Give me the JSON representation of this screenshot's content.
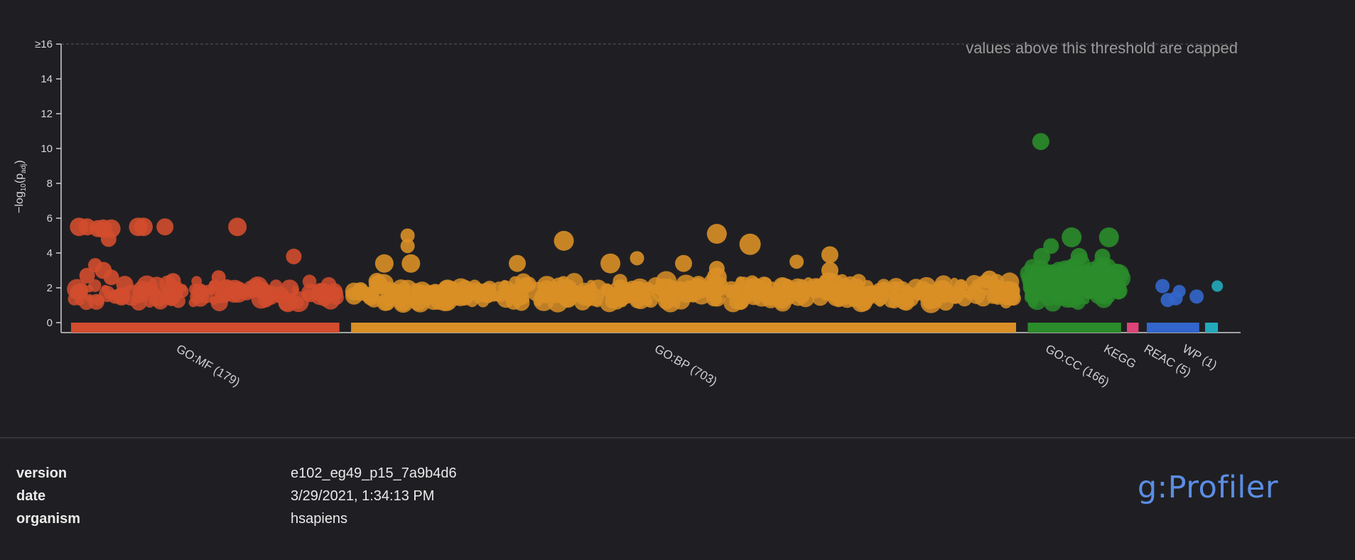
{
  "chart_data": {
    "type": "scatter",
    "ylabel_prefix": "−log",
    "ylabel_sub": "10",
    "ylabel_main": "(p",
    "ylabel_sub2": "adj",
    "ylabel_close": ")",
    "ylim": [
      0,
      16
    ],
    "yticks": [
      "0",
      "2",
      "4",
      "6",
      "8",
      "10",
      "12",
      "14",
      "≥16"
    ],
    "cap_annotation": "values above this threshold are capped",
    "sources": [
      {
        "name": "GO:MF (179)",
        "color": "#d24d2e",
        "range": [
          0,
          0.23
        ],
        "seed": 11,
        "count": 110,
        "base": 1.65,
        "spread": 0.55,
        "highlights": [
          [
            0.03,
            5.5,
            13
          ],
          [
            0.06,
            5.5,
            12
          ],
          [
            0.1,
            5.4,
            12
          ],
          [
            0.12,
            5.4,
            13
          ],
          [
            0.09,
            3.3,
            10
          ],
          [
            0.12,
            3.0,
            12
          ],
          [
            0.15,
            5.4,
            13
          ],
          [
            0.14,
            4.8,
            11
          ],
          [
            0.27,
            5.5,
            13
          ],
          [
            0.25,
            5.5,
            13
          ],
          [
            0.35,
            5.5,
            12
          ],
          [
            0.62,
            5.5,
            13
          ],
          [
            0.83,
            3.8,
            11
          ],
          [
            0.06,
            2.7,
            11
          ],
          [
            0.15,
            2.6,
            11
          ],
          [
            0.2,
            2.2,
            12
          ],
          [
            0.38,
            2.4,
            11
          ],
          [
            0.55,
            2.6,
            10
          ],
          [
            0.58,
            2.0,
            12
          ],
          [
            0.78,
            1.6,
            12
          ],
          [
            0.96,
            1.55,
            10
          ],
          [
            0.99,
            1.7,
            9
          ]
        ]
      },
      {
        "name": "GO:BP (703)",
        "color": "#d98f26",
        "range": [
          0.24,
          0.81
        ],
        "seed": 23,
        "count": 420,
        "base": 1.7,
        "spread": 0.6,
        "highlights": [
          [
            0.085,
            5.0,
            10
          ],
          [
            0.085,
            4.4,
            10
          ],
          [
            0.05,
            3.4,
            13
          ],
          [
            0.09,
            3.4,
            13
          ],
          [
            0.25,
            3.4,
            12
          ],
          [
            0.32,
            4.7,
            14
          ],
          [
            0.39,
            3.4,
            14
          ],
          [
            0.43,
            3.7,
            10
          ],
          [
            0.55,
            5.1,
            14
          ],
          [
            0.6,
            4.5,
            15
          ],
          [
            0.67,
            3.5,
            10
          ],
          [
            0.72,
            3.9,
            12
          ],
          [
            0.72,
            3.0,
            12
          ],
          [
            0.55,
            3.1,
            11
          ],
          [
            0.5,
            3.4,
            12
          ],
          [
            0.96,
            2.5,
            12
          ],
          [
            0.97,
            2.0,
            12
          ],
          [
            0.55,
            2.6,
            14
          ]
        ]
      },
      {
        "name": "GO:CC (166)",
        "color": "#2a8c2a",
        "range": [
          0.82,
          0.9
        ],
        "seed": 37,
        "count": 170,
        "base": 2.2,
        "spread": 0.9,
        "highlights": [
          [
            0.14,
            10.4,
            12
          ],
          [
            0.47,
            4.9,
            14
          ],
          [
            0.87,
            4.9,
            14
          ],
          [
            0.25,
            4.4,
            11
          ],
          [
            0.15,
            3.8,
            12
          ],
          [
            0.55,
            3.8,
            12
          ],
          [
            0.8,
            3.8,
            11
          ],
          [
            0.95,
            2.9,
            12
          ],
          [
            0.99,
            2.2,
            8
          ]
        ]
      },
      {
        "name": "KEGG",
        "color": "#dd4477",
        "range": [
          0.905,
          0.915
        ],
        "seed": 41,
        "count": 0,
        "base": 0,
        "spread": 0,
        "highlights": []
      },
      {
        "name": "REAC (5)",
        "color": "#3366cc",
        "range": [
          0.922,
          0.967
        ],
        "seed": 53,
        "count": 0,
        "base": 0,
        "spread": 0,
        "highlights": [
          [
            0.3,
            2.1,
            10
          ],
          [
            0.4,
            1.3,
            10
          ],
          [
            0.55,
            1.4,
            10
          ],
          [
            0.62,
            1.8,
            9
          ],
          [
            0.95,
            1.5,
            10
          ]
        ]
      },
      {
        "name": "WP (1)",
        "color": "#22aabb",
        "range": [
          0.972,
          0.983
        ],
        "seed": 61,
        "count": 0,
        "base": 0,
        "spread": 0,
        "highlights": [
          [
            0.95,
            2.1,
            8
          ]
        ]
      }
    ]
  },
  "footer": {
    "rows": [
      {
        "key": "version",
        "value": "e102_eg49_p15_7a9b4d6"
      },
      {
        "key": "date",
        "value": "3/29/2021, 1:34:13 PM"
      },
      {
        "key": "organism",
        "value": "hsapiens"
      }
    ],
    "logo": "g:Profiler"
  }
}
